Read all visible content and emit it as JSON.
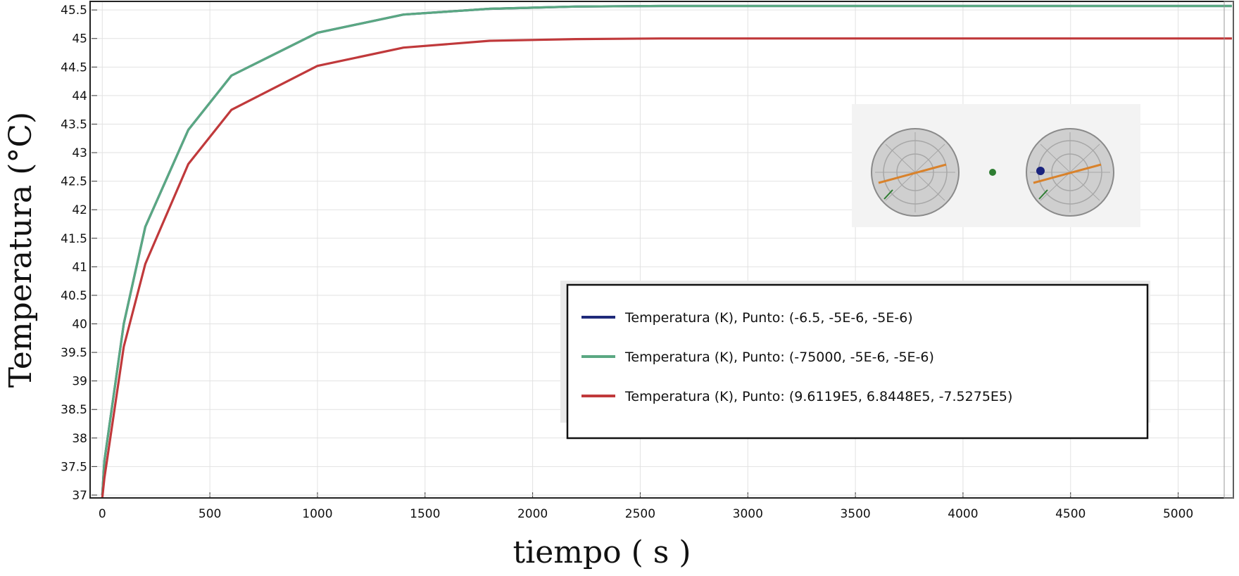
{
  "chart_data": {
    "type": "line",
    "title": "",
    "xlabel": "tiempo ( s )",
    "ylabel": "Temperatura (°C)",
    "xlim": [
      -50,
      5250
    ],
    "ylim": [
      36.95,
      45.65
    ],
    "xticks": [
      0,
      500,
      1000,
      1500,
      2000,
      2500,
      3000,
      3500,
      4000,
      4500,
      5000
    ],
    "yticks": [
      37,
      37.5,
      38,
      38.5,
      39,
      39.5,
      40,
      40.5,
      41,
      41.5,
      42,
      42.5,
      43,
      43.5,
      44,
      44.5,
      45,
      45.5
    ],
    "grid": true,
    "legend_position": "lower-right",
    "series": [
      {
        "name": "Temperatura (K), Punto: (-6.5, -5E-6, -5E-6)",
        "color": "#1f2a7a",
        "x": [
          0,
          10,
          100,
          200,
          400,
          600,
          1000,
          1400,
          1800,
          2200,
          2600,
          3000,
          4000,
          5250
        ],
        "y": [
          37.0,
          37.6,
          40.0,
          41.7,
          43.4,
          44.35,
          45.1,
          45.42,
          45.52,
          45.56,
          45.57,
          45.57,
          45.57,
          45.57
        ]
      },
      {
        "name": "Temperatura (K), Punto: (-75000, -5E-6, -5E-6)",
        "color": "#5aa882",
        "x": [
          0,
          10,
          100,
          200,
          400,
          600,
          1000,
          1400,
          1800,
          2200,
          2600,
          3000,
          4000,
          5250
        ],
        "y": [
          37.0,
          37.6,
          40.0,
          41.7,
          43.4,
          44.35,
          45.1,
          45.42,
          45.52,
          45.56,
          45.57,
          45.57,
          45.57,
          45.57
        ]
      },
      {
        "name": "Temperatura (K), Punto: (9.6119E5, 6.8448E5, -7.5275E5)",
        "color": "#c0393b",
        "x": [
          0,
          10,
          100,
          200,
          400,
          600,
          1000,
          1400,
          1800,
          2200,
          2600,
          3000,
          4000,
          5250
        ],
        "y": [
          36.95,
          37.3,
          39.6,
          41.05,
          42.8,
          43.75,
          44.52,
          44.84,
          44.96,
          44.99,
          45.0,
          45.0,
          45.0,
          45.0
        ]
      }
    ]
  },
  "inset": {
    "description_icon": "sphere-geometry-icon",
    "sphere_color": "#c9c9c9",
    "line_color": "#d9822b",
    "point_green": "#2e7d32",
    "point_blue": "#1a237e"
  }
}
